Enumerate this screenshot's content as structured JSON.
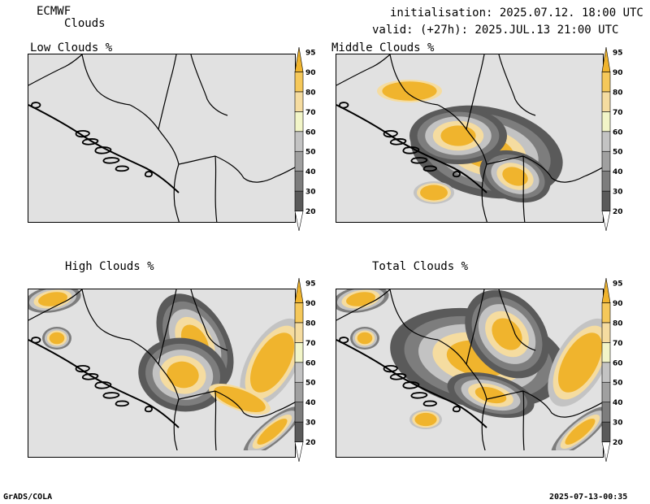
{
  "header": {
    "model": "ECMWF",
    "product": "Clouds",
    "init": "initialisation: 2025.07.12. 18:00 UTC",
    "valid": "valid: (+27h): 2025.JUL.13 21:00 UTC"
  },
  "panels": [
    {
      "title": "Low Clouds %",
      "coverage": "none"
    },
    {
      "title": "Middle Clouds %",
      "coverage": "middle"
    },
    {
      "title": "High Clouds %",
      "coverage": "high"
    },
    {
      "title": "Total Clouds %",
      "coverage": "total"
    }
  ],
  "colorbar": {
    "levels": [
      "20",
      "30",
      "40",
      "50",
      "60",
      "70",
      "80",
      "90",
      "95"
    ],
    "colors": [
      "#ffffff",
      "#5a5a5a",
      "#7d7d7d",
      "#a0a0a0",
      "#c3c3c3",
      "#f2f5c8",
      "#f5dca0",
      "#f5c85a",
      "#f0b42d"
    ]
  },
  "footer": {
    "left": "GrADS/COLA",
    "right": "2025-07-13-00:35"
  }
}
